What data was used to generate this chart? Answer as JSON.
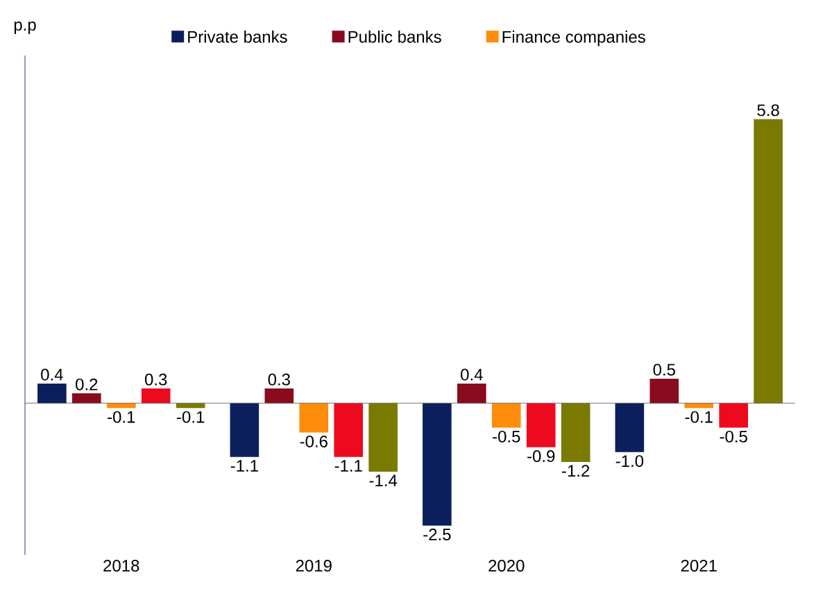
{
  "chart_data": {
    "type": "bar",
    "ylabel": "p.p",
    "categories": [
      "2018",
      "2019",
      "2020",
      "2021"
    ],
    "series": [
      {
        "name": "Private banks",
        "color": "#0b1f5c",
        "values": [
          0.4,
          -1.1,
          -2.5,
          -1.0
        ],
        "value_labels": [
          "0.4",
          "-1.1",
          "-2.5",
          "-1.0"
        ]
      },
      {
        "name": "Public banks",
        "color": "#8a0a1e",
        "values": [
          0.2,
          0.3,
          0.4,
          0.5
        ],
        "value_labels": [
          "0.2",
          "0.3",
          "0.4",
          "0.5"
        ]
      },
      {
        "name": "Finance companies",
        "color": "#ff8c0a",
        "values": [
          -0.1,
          -0.6,
          -0.5,
          -0.1
        ],
        "value_labels": [
          "-0.1",
          "-0.6",
          "-0.5",
          "-0.1"
        ]
      },
      {
        "color": "#ee0a1e",
        "values": [
          0.3,
          -1.1,
          -0.9,
          -0.5
        ],
        "value_labels": [
          "0.3",
          "-1.1",
          "-0.9",
          "-0.5"
        ]
      },
      {
        "color": "#7a7a00",
        "values": [
          -0.1,
          -1.4,
          -1.2,
          5.8
        ],
        "value_labels": [
          "-0.1",
          "-1.4",
          "-1.2",
          "5.8"
        ]
      }
    ],
    "ylim": [
      -3.1,
      7.1
    ],
    "legend": "top"
  }
}
